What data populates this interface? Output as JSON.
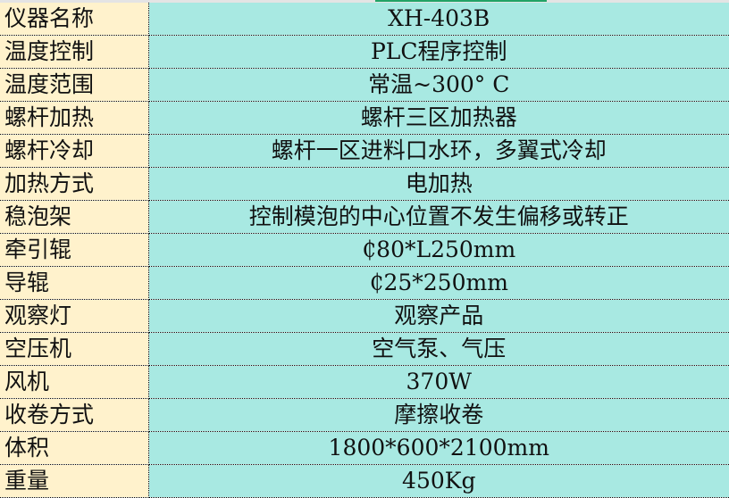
{
  "colors": {
    "label_bg": "#fff2cc",
    "value_bg": "#a8e9e2"
  },
  "rows": [
    {
      "label": "仪器名称",
      "value": "XH-403B"
    },
    {
      "label": "温度控制",
      "value": "PLC程序控制"
    },
    {
      "label": "温度范围",
      "value": "常温~300° C"
    },
    {
      "label": "螺杆加热",
      "value": "螺杆三区加热器"
    },
    {
      "label": "螺杆冷却",
      "value": "螺杆一区进料口水环，多翼式冷却"
    },
    {
      "label": "加热方式",
      "value": "电加热"
    },
    {
      "label": "稳泡架",
      "value": "控制模泡的中心位置不发生偏移或转正"
    },
    {
      "label": "牵引辊",
      "value": "₵80*L250mm"
    },
    {
      "label": "导辊",
      "value": "₵25*250mm"
    },
    {
      "label": "观察灯",
      "value": "观察产品"
    },
    {
      "label": "空压机",
      "value": "空气泵、气压"
    },
    {
      "label": "风机",
      "value": "370W"
    },
    {
      "label": "收卷方式",
      "value": "摩擦收卷"
    },
    {
      "label": "体积",
      "value": "1800*600*2100mm"
    },
    {
      "label": "重量",
      "value": "450Kg"
    }
  ]
}
